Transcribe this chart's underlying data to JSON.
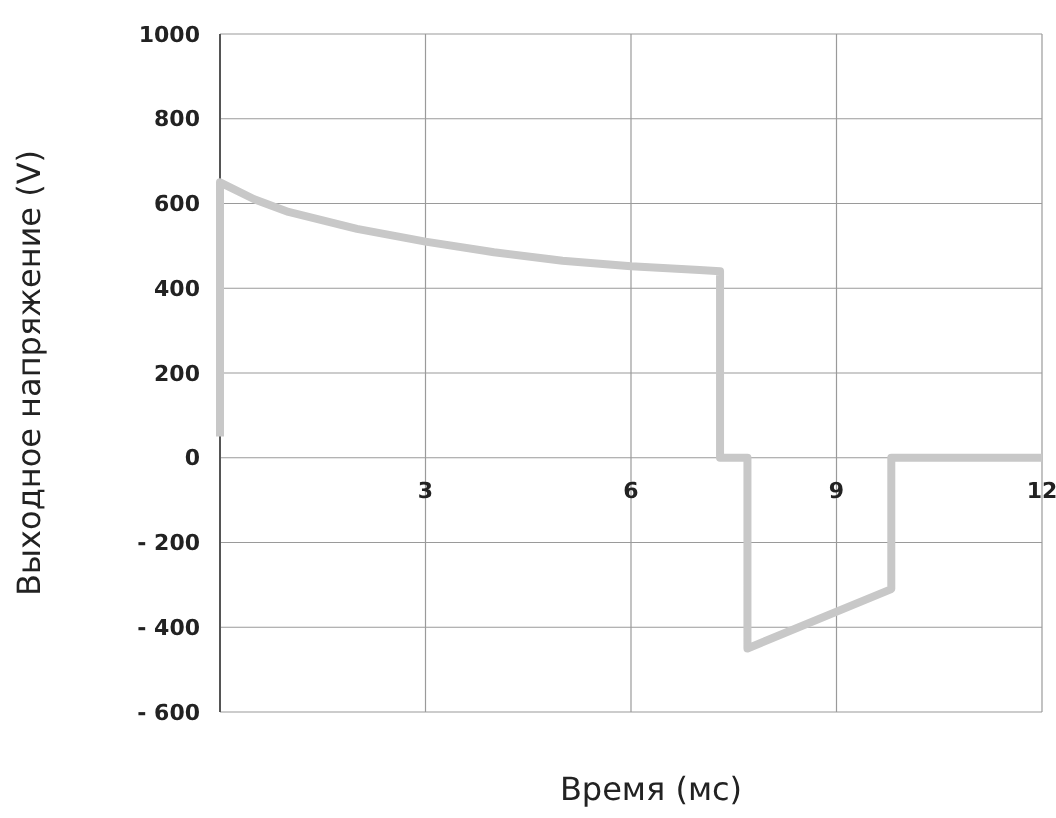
{
  "chart_data": {
    "type": "line",
    "xlabel": "Время (мс)",
    "ylabel": "Выходное напряжение (V)",
    "xlim": [
      0,
      12
    ],
    "ylim": [
      -600,
      1000
    ],
    "xticks": [
      3,
      6,
      9,
      12
    ],
    "yticks": [
      {
        "value": -600,
        "label": "- 600"
      },
      {
        "value": -400,
        "label": "- 400"
      },
      {
        "value": -200,
        "label": "- 200"
      },
      0,
      200,
      400,
      600,
      800,
      1000
    ],
    "grid": true,
    "marker": "none",
    "line_style": "solid",
    "series": [
      {
        "color": "#c8c8c8",
        "x": [
          0,
          0,
          0.5,
          1,
          2,
          3,
          4,
          5,
          6,
          7,
          7.3,
          7.3,
          7.7,
          7.7,
          9.8,
          9.8,
          12
        ],
        "values": [
          50,
          650,
          610,
          580,
          540,
          510,
          485,
          465,
          452,
          443,
          440,
          0,
          0,
          -450,
          -310,
          0,
          0
        ]
      }
    ]
  }
}
